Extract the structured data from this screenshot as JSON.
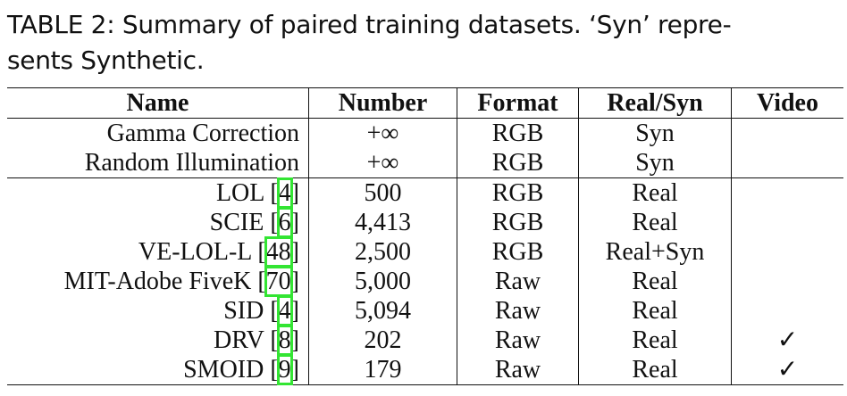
{
  "caption": {
    "lines": [
      "TABLE 2: Summary of paired training datasets. ‘Syn’ repre-",
      "sents Synthetic."
    ]
  },
  "table": {
    "header": [
      "Name",
      "Number",
      "Format",
      "Real/Syn",
      "Video"
    ],
    "cite_brackets": [
      "[",
      "]"
    ],
    "groups": [
      [
        {
          "name": "Gamma Correction",
          "cite": null,
          "number": "+∞",
          "format": "RGB",
          "real_syn": "Syn",
          "video": null
        },
        {
          "name": "Random Illumination",
          "cite": null,
          "number": "+∞",
          "format": "RGB",
          "real_syn": "Syn",
          "video": null
        }
      ],
      [
        {
          "name": "LOL",
          "cite": "4",
          "number": "500",
          "format": "RGB",
          "real_syn": "Real",
          "video": null
        },
        {
          "name": "SCIE",
          "cite": "6",
          "number": "4,413",
          "format": "RGB",
          "real_syn": "Real",
          "video": null
        },
        {
          "name": "VE-LOL-L",
          "cite": "48",
          "number": "2,500",
          "format": "RGB",
          "real_syn": "Real+Syn",
          "video": null
        },
        {
          "name": "MIT-Adobe FiveK",
          "cite": "70",
          "number": "5,000",
          "format": "Raw",
          "real_syn": "Real",
          "video": null
        },
        {
          "name": "SID",
          "cite": "4",
          "number": "5,094",
          "format": "Raw",
          "real_syn": "Real",
          "video": null
        },
        {
          "name": "DRV",
          "cite": "8",
          "number": "202",
          "format": "Raw",
          "real_syn": "Real",
          "video": "✓"
        },
        {
          "name": "SMOID",
          "cite": "9",
          "number": "179",
          "format": "Raw",
          "real_syn": "Real",
          "video": "✓"
        }
      ]
    ]
  }
}
